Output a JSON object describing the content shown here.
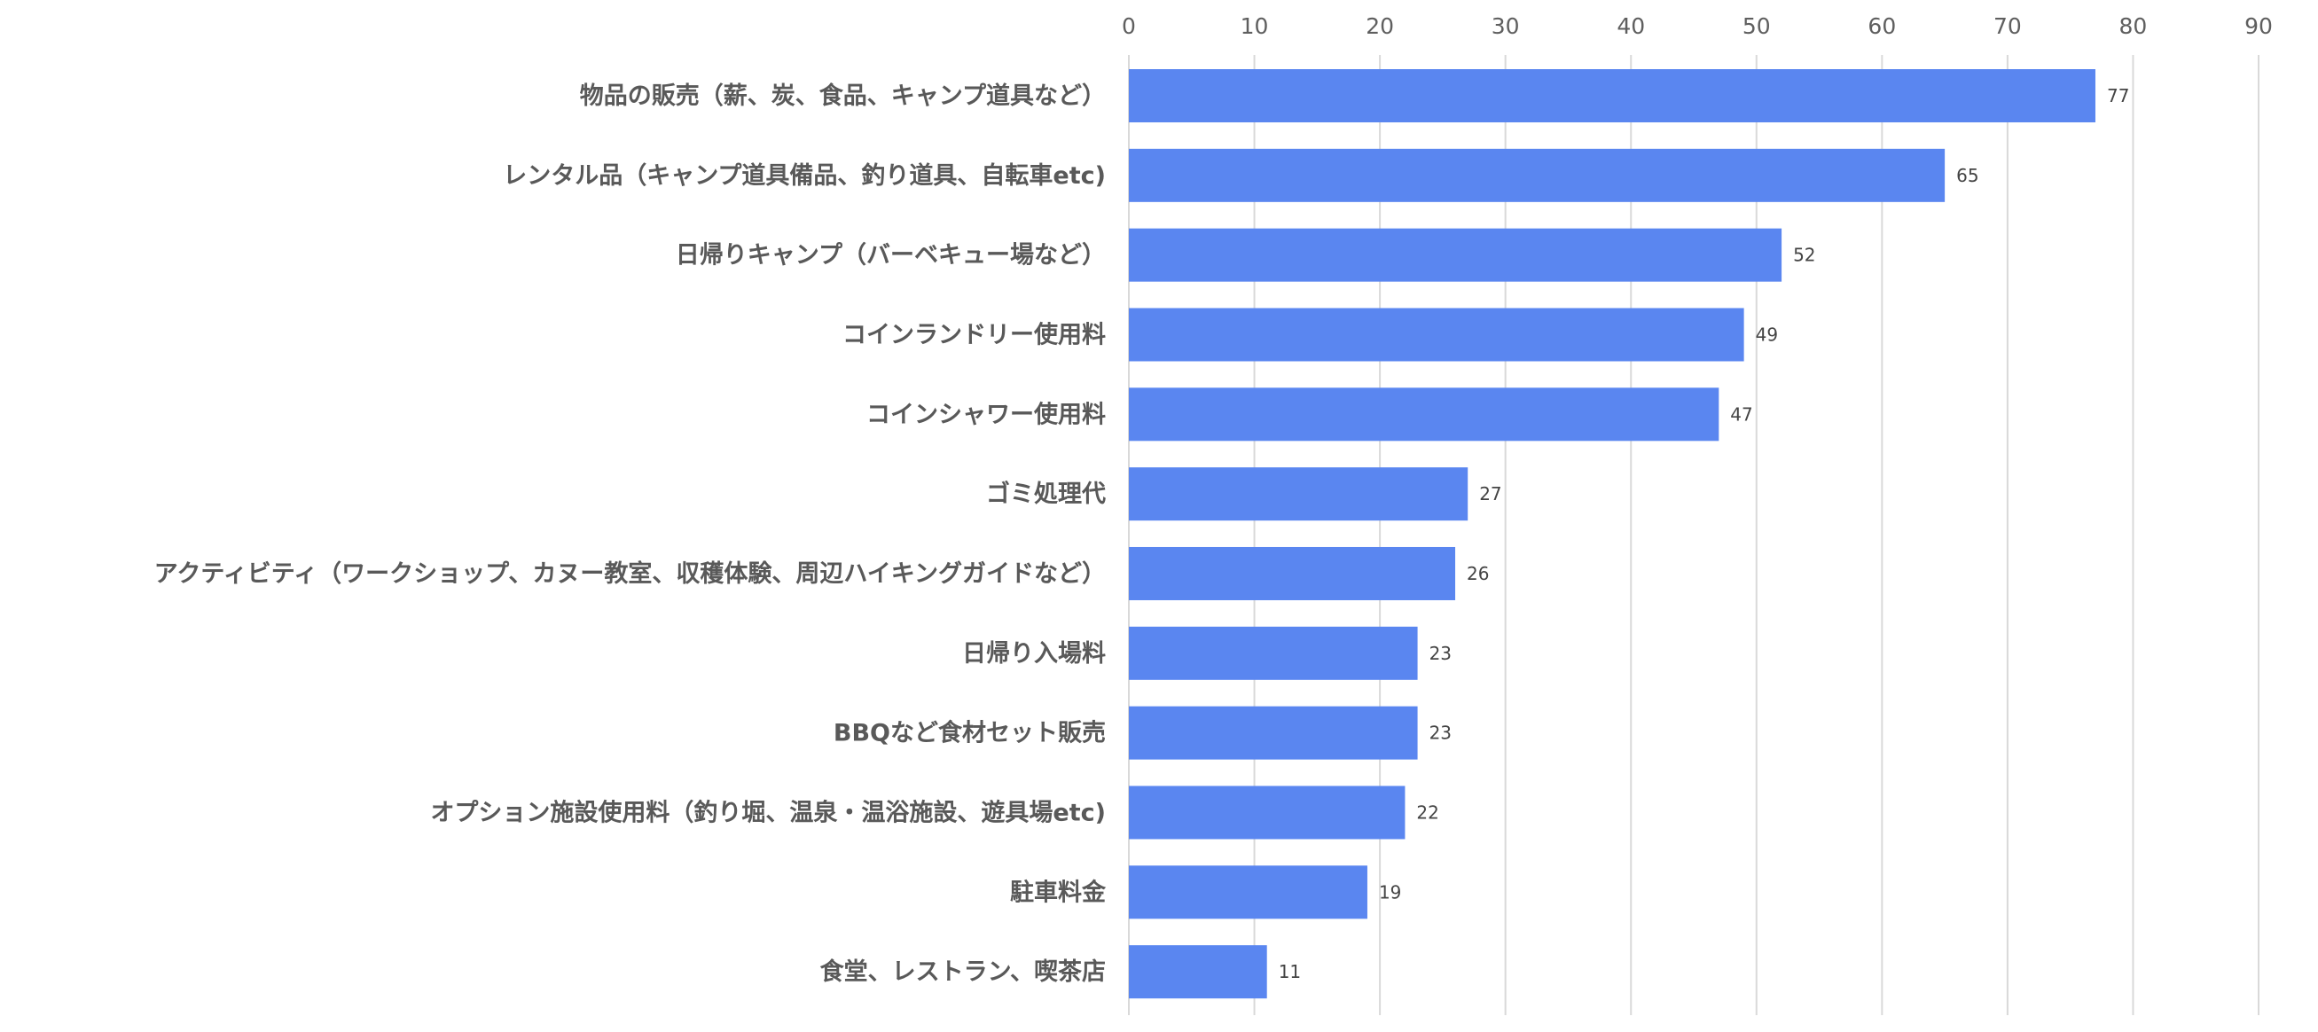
{
  "chart_data": {
    "type": "bar",
    "orientation": "horizontal",
    "title": "",
    "xlabel": "",
    "ylabel": "",
    "xlim": [
      0,
      90
    ],
    "xticks": [
      0,
      10,
      20,
      30,
      40,
      50,
      60,
      70,
      80,
      90
    ],
    "grid": true,
    "legend": "none",
    "bar_color": "#5a86f0",
    "categories": [
      "物品の販売（薪、炭、食品、キャンプ道具など）",
      "レンタル品（キャンプ道具備品、釣り道具、自転車etc)",
      "日帰りキャンプ（バーベキュー場など）",
      "コインランドリー使用料",
      "コインシャワー使用料",
      "ゴミ処理代",
      "アクティビティ（ワークショップ、カヌー教室、収穫体験、周辺ハイキングガイドなど）",
      "日帰り入場料",
      "BBQなど食材セット販売",
      "オプション施設使用料（釣り堀、温泉・温浴施設、遊具場etc)",
      "駐車料金",
      "食堂、レストラン、喫茶店"
    ],
    "values": [
      77,
      65,
      52,
      49,
      47,
      27,
      26,
      23,
      23,
      22,
      19,
      11
    ]
  }
}
